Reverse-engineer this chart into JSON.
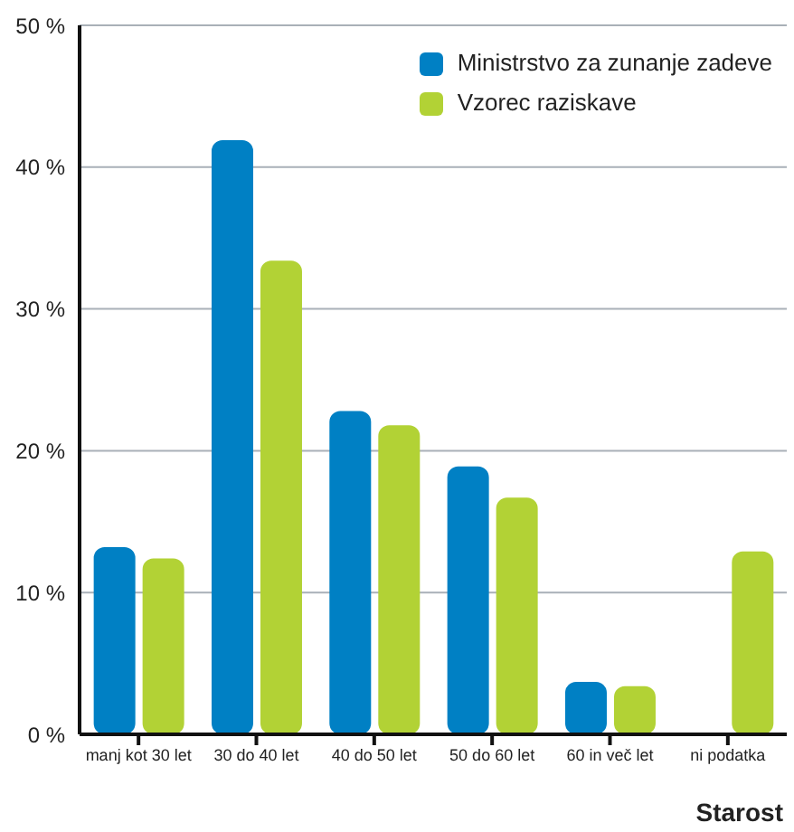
{
  "chart_data": {
    "type": "bar",
    "xlabel": "Starost",
    "categories": [
      "manj kot 30 let",
      "30 do 40 let",
      "40 do 50 let",
      "50 do 60 let",
      "60 in več let",
      "ni podatka"
    ],
    "series": [
      {
        "name": "Ministrstvo za zunanje zadeve",
        "color": "#0080c4",
        "values": [
          13.2,
          41.9,
          22.8,
          18.9,
          3.7,
          null
        ]
      },
      {
        "name": "Vzorec raziskave",
        "color": "#b2d235",
        "values": [
          12.4,
          33.4,
          21.8,
          16.7,
          3.4,
          12.9
        ]
      }
    ],
    "ylim": [
      0,
      50
    ],
    "yticks": [
      {
        "value": 0,
        "label": "0 %"
      },
      {
        "value": 10,
        "label": "10 %"
      },
      {
        "value": 20,
        "label": "20 %"
      },
      {
        "value": 30,
        "label": "30 %"
      },
      {
        "value": 40,
        "label": "40 %"
      },
      {
        "value": 50,
        "label": "50 %"
      }
    ],
    "grid": "y",
    "legend": "top right"
  }
}
